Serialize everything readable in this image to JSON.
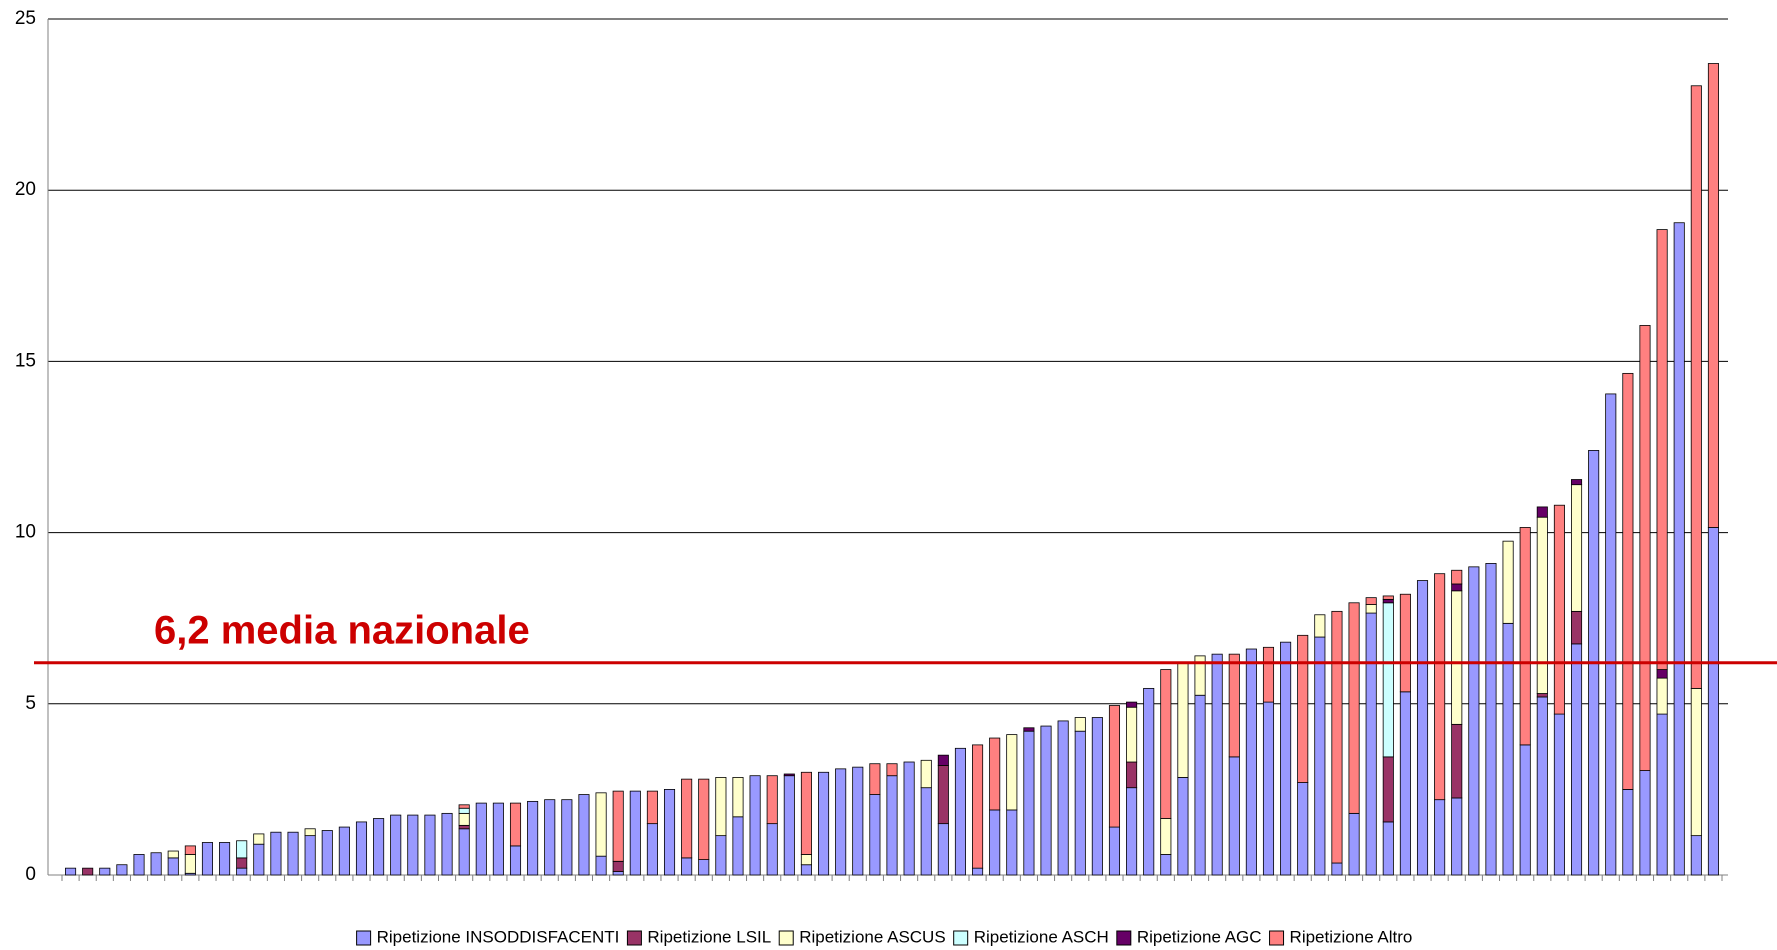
{
  "chart_data": {
    "type": "stacked_bar",
    "categories": [
      null,
      null,
      null,
      null,
      null,
      null,
      null,
      null,
      null,
      null,
      null,
      null,
      null,
      null,
      null,
      null,
      null,
      null,
      null,
      null,
      null,
      null,
      null,
      null,
      null,
      null,
      null,
      null,
      null,
      null,
      null,
      null,
      null,
      null,
      null,
      null,
      null,
      null,
      null,
      null,
      null,
      null,
      null,
      null,
      null,
      null,
      null,
      null,
      null,
      null,
      null,
      null,
      null,
      null,
      null,
      null,
      null,
      null,
      null,
      null,
      null,
      null,
      null,
      null,
      null,
      null,
      null,
      null,
      null,
      null,
      null,
      null,
      null,
      null,
      null,
      null,
      null,
      null,
      null,
      null,
      null,
      null,
      null,
      null,
      null,
      null,
      null,
      null,
      null,
      null,
      null,
      null,
      null,
      null,
      null,
      null,
      null
    ],
    "series": [
      {
        "name": "Ripetizione INSODDISFACENTI",
        "color": "#9999ff",
        "values": [
          0.2,
          0,
          0.2,
          0.3,
          0.6,
          0.65,
          0.5,
          0.05,
          0.95,
          0.95,
          0.2,
          0.9,
          1.25,
          1.25,
          1.15,
          1.3,
          1.4,
          1.55,
          1.65,
          1.75,
          1.75,
          1.75,
          1.8,
          1.35,
          2.1,
          2.1,
          0.85,
          2.15,
          2.2,
          2.2,
          2.35,
          0.55,
          0.1,
          2.45,
          1.5,
          2.5,
          0.5,
          0.45,
          1.15,
          1.7,
          2.9,
          1.5,
          2.9,
          0.3,
          3.0,
          3.1,
          3.15,
          2.35,
          2.9,
          3.3,
          2.55,
          1.5,
          3.7,
          0.2,
          1.9,
          1.9,
          4.2,
          4.35,
          4.5,
          4.2,
          4.6,
          1.4,
          2.55,
          5.45,
          0.6,
          2.85,
          5.25,
          6.45,
          3.45,
          6.6,
          5.05,
          6.8,
          2.7,
          6.95,
          0.35,
          1.8,
          7.65,
          1.55,
          5.35,
          8.6,
          2.2,
          2.25,
          9.0,
          9.1,
          7.35,
          3.8,
          5.2,
          4.7,
          6.75,
          12.4,
          14.05,
          2.5,
          3.05,
          4.7,
          19.05,
          1.15,
          10.15
        ]
      },
      {
        "name": "Ripetizione LSIL",
        "color": "#993366",
        "values": [
          0,
          0.2,
          0,
          0,
          0,
          0,
          0,
          0,
          0,
          0,
          0.3,
          0,
          0,
          0,
          0,
          0,
          0,
          0,
          0,
          0,
          0,
          0,
          0,
          0.1,
          0,
          0,
          0,
          0,
          0,
          0,
          0,
          0,
          0.3,
          0,
          0,
          0,
          0,
          0,
          0,
          0,
          0,
          0,
          0,
          0,
          0,
          0,
          0,
          0,
          0,
          0,
          0,
          1.7,
          0,
          0,
          0,
          0,
          0,
          0,
          0,
          0,
          0,
          0,
          0.75,
          0,
          0,
          0,
          0,
          0,
          0,
          0,
          0,
          0,
          0,
          0,
          0,
          0,
          0,
          1.9,
          0,
          0,
          0,
          2.15,
          0,
          0,
          0,
          0,
          0.1,
          0,
          0.95,
          0,
          0,
          0,
          0,
          0,
          0,
          0,
          0
        ]
      },
      {
        "name": "Ripetizione ASCUS",
        "color": "#ffffcc",
        "values": [
          0,
          0,
          0,
          0,
          0,
          0,
          0.2,
          0.55,
          0,
          0,
          0,
          0.3,
          0,
          0,
          0.2,
          0,
          0,
          0,
          0,
          0,
          0,
          0,
          0,
          0.35,
          0,
          0,
          0,
          0,
          0,
          0,
          0,
          1.85,
          0,
          0,
          0,
          0,
          0,
          0,
          1.7,
          1.15,
          0,
          0,
          0,
          0.3,
          0,
          0,
          0,
          0,
          0,
          0,
          0.8,
          0,
          0,
          0,
          0,
          2.2,
          0,
          0,
          0,
          0.4,
          0,
          0,
          1.6,
          0,
          1.05,
          3.35,
          1.15,
          0,
          0,
          0,
          0,
          0,
          0,
          0.65,
          0,
          0,
          0.25,
          0,
          0,
          0,
          0,
          3.9,
          0,
          0,
          2.4,
          0,
          5.15,
          0,
          3.7,
          0,
          0,
          0,
          0,
          1.05,
          0,
          4.3,
          0
        ]
      },
      {
        "name": "Ripetizione ASCH",
        "color": "#ccffff",
        "values": [
          0,
          0,
          0,
          0,
          0,
          0,
          0,
          0,
          0,
          0,
          0.5,
          0,
          0,
          0,
          0,
          0,
          0,
          0,
          0,
          0,
          0,
          0,
          0,
          0.15,
          0,
          0,
          0,
          0,
          0,
          0,
          0,
          0,
          0,
          0,
          0,
          0,
          0,
          0,
          0,
          0,
          0,
          0,
          0,
          0,
          0,
          0,
          0,
          0,
          0,
          0,
          0,
          0,
          0,
          0,
          0,
          0,
          0,
          0,
          0,
          0,
          0,
          0,
          0,
          0,
          0,
          0,
          0,
          0,
          0,
          0,
          0,
          0,
          0,
          0,
          0,
          0,
          0,
          4.5,
          0,
          0,
          0,
          0,
          0,
          0,
          0,
          0,
          0,
          0,
          0,
          0,
          0,
          0,
          0,
          0,
          0,
          0,
          0
        ]
      },
      {
        "name": "Ripetizione AGC",
        "color": "#660066",
        "values": [
          0,
          0,
          0,
          0,
          0,
          0,
          0,
          0,
          0,
          0,
          0,
          0,
          0,
          0,
          0,
          0,
          0,
          0,
          0,
          0,
          0,
          0,
          0,
          0,
          0,
          0,
          0,
          0,
          0,
          0,
          0,
          0,
          0,
          0,
          0,
          0,
          0,
          0,
          0,
          0,
          0,
          0,
          0.05,
          0,
          0,
          0,
          0,
          0,
          0,
          0,
          0,
          0.3,
          0,
          0,
          0,
          0,
          0.1,
          0,
          0,
          0,
          0,
          0,
          0.15,
          0,
          0,
          0,
          0,
          0,
          0,
          0,
          0,
          0,
          0,
          0,
          0,
          0,
          0,
          0.1,
          0,
          0,
          0,
          0.2,
          0,
          0,
          0,
          0,
          0.3,
          0,
          0.15,
          0,
          0,
          0,
          0,
          0.25,
          0,
          0,
          0
        ]
      },
      {
        "name": "Ripetizione Altro",
        "color": "#ff8080",
        "values": [
          0,
          0,
          0,
          0,
          0,
          0,
          0,
          0.25,
          0,
          0,
          0,
          0,
          0,
          0,
          0,
          0,
          0,
          0,
          0,
          0,
          0,
          0,
          0,
          0.1,
          0,
          0,
          1.25,
          0,
          0,
          0,
          0,
          0,
          2.05,
          0,
          0.95,
          0,
          2.3,
          2.35,
          0,
          0,
          0,
          1.4,
          0,
          2.4,
          0,
          0,
          0,
          0.9,
          0.35,
          0,
          0,
          0,
          0,
          3.6,
          2.1,
          0,
          0,
          0,
          0,
          0,
          0,
          3.55,
          0,
          0,
          4.35,
          0,
          0,
          0,
          3.0,
          0,
          1.6,
          0,
          4.3,
          0,
          7.35,
          6.15,
          0.2,
          0.1,
          2.85,
          0,
          6.6,
          0.4,
          0,
          0,
          0,
          6.35,
          0,
          6.1,
          0,
          0,
          0,
          12.15,
          13.0,
          12.85,
          0,
          17.6,
          13.55
        ]
      }
    ],
    "ylim": [
      0,
      25
    ],
    "yticks": [
      0,
      5,
      10,
      15,
      20,
      25
    ],
    "grid": true,
    "legend": "bottom",
    "reference_line": {
      "value": 6.2,
      "label": "6,2 media nazionale",
      "color": "#cc0000"
    }
  }
}
